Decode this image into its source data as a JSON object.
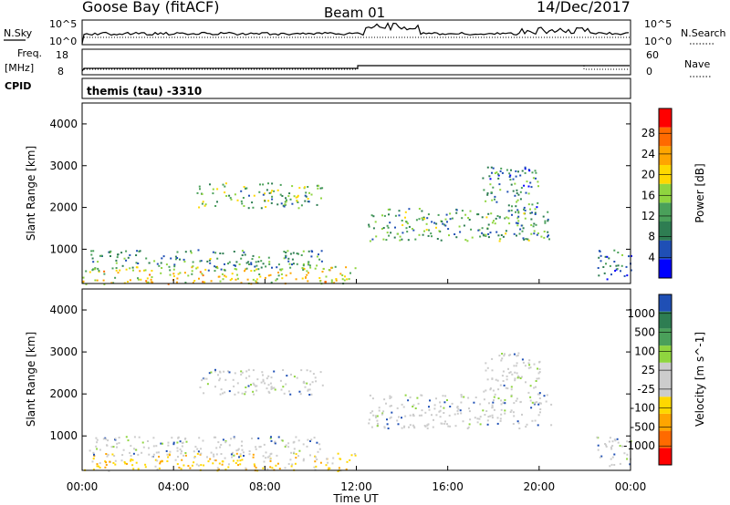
{
  "header": {
    "station": "Goose Bay (fitACF)",
    "beam": "Beam 01",
    "date": "14/Dec/2017"
  },
  "noise_panel": {
    "left_label": "N.Sky",
    "right_label": "N.Search",
    "tick_top": "10^5",
    "tick_bottom": "10^0"
  },
  "freq_panel": {
    "label_line1": "Freq.",
    "label_line2": "[MHz]",
    "tick_top": "18",
    "tick_bottom": "8",
    "right_label": "Nave",
    "right_tick_top": "60",
    "right_tick_bottom": "0"
  },
  "cpid_panel": {
    "label": "CPID",
    "value": "themis (tau) -3310"
  },
  "colors": {
    "power_scale": [
      "#0000ff",
      "#1f4fb5",
      "#2e7d52",
      "#4aa05a",
      "#8fd53f",
      "#ffd800",
      "#ffa500",
      "#ff6a00",
      "#ff0000"
    ],
    "velocity_scale": [
      "#ff0000",
      "#ff6a00",
      "#ffa500",
      "#ffd800",
      "#cccccc",
      "#cccccc",
      "#8fd53f",
      "#4aa05a",
      "#2e7d52",
      "#1f4fb5"
    ]
  },
  "chart_data": [
    {
      "type": "heatmap",
      "name": "power",
      "xlabel": "Time UT",
      "ylabel": "Slant Range [km]",
      "xlim": [
        0,
        24
      ],
      "ylim": [
        180,
        4500
      ],
      "x_ticks": [
        "00:00",
        "04:00",
        "08:00",
        "12:00",
        "16:00",
        "20:00",
        "00:00"
      ],
      "y_ticks": [
        1000,
        2000,
        3000,
        4000
      ],
      "colorbar": {
        "label": "Power [dB]",
        "ticks": [
          "4",
          "8",
          "12",
          "16",
          "20",
          "24",
          "28"
        ],
        "range": [
          0,
          30
        ]
      },
      "echo_regions": [
        {
          "t": [
            0.0,
            12.0
          ],
          "r": [
            180,
            600
          ],
          "value": 18
        },
        {
          "t": [
            0.3,
            10.5
          ],
          "r": [
            500,
            1000
          ],
          "value": 10
        },
        {
          "t": [
            5.0,
            10.5
          ],
          "r": [
            2000,
            2600
          ],
          "value": 12
        },
        {
          "t": [
            12.5,
            20.5
          ],
          "r": [
            1200,
            2000
          ],
          "value": 10
        },
        {
          "t": [
            17.5,
            20.0
          ],
          "r": [
            2000,
            3000
          ],
          "value": 8
        },
        {
          "t": [
            22.5,
            24.0
          ],
          "r": [
            300,
            1000
          ],
          "value": 6
        }
      ]
    },
    {
      "type": "heatmap",
      "name": "velocity",
      "xlabel": "Time UT",
      "ylabel": "Slant Range [km]",
      "xlim": [
        0,
        24
      ],
      "ylim": [
        180,
        4500
      ],
      "x_ticks": [
        "00:00",
        "04:00",
        "08:00",
        "12:00",
        "16:00",
        "20:00",
        "00:00"
      ],
      "y_ticks": [
        1000,
        2000,
        3000,
        4000
      ],
      "colorbar": {
        "label": "Velocity [m s^-1]",
        "ticks": [
          "1000",
          "500",
          "100",
          "25",
          "-25",
          "-100",
          "-500",
          "-1000"
        ]
      },
      "echo_regions": [
        {
          "t": [
            0.0,
            12.0
          ],
          "r": [
            180,
            600
          ],
          "value": -100
        },
        {
          "t": [
            0.3,
            10.5
          ],
          "r": [
            500,
            1000
          ],
          "value": 25
        },
        {
          "t": [
            5.0,
            10.5
          ],
          "r": [
            2000,
            2600
          ],
          "value": 0
        },
        {
          "t": [
            12.5,
            20.5
          ],
          "r": [
            1200,
            2000
          ],
          "value": 0
        },
        {
          "t": [
            17.5,
            20.0
          ],
          "r": [
            2000,
            3000
          ],
          "value": 0
        },
        {
          "t": [
            22.5,
            24.0
          ],
          "r": [
            300,
            1000
          ],
          "value": 0
        }
      ]
    }
  ]
}
